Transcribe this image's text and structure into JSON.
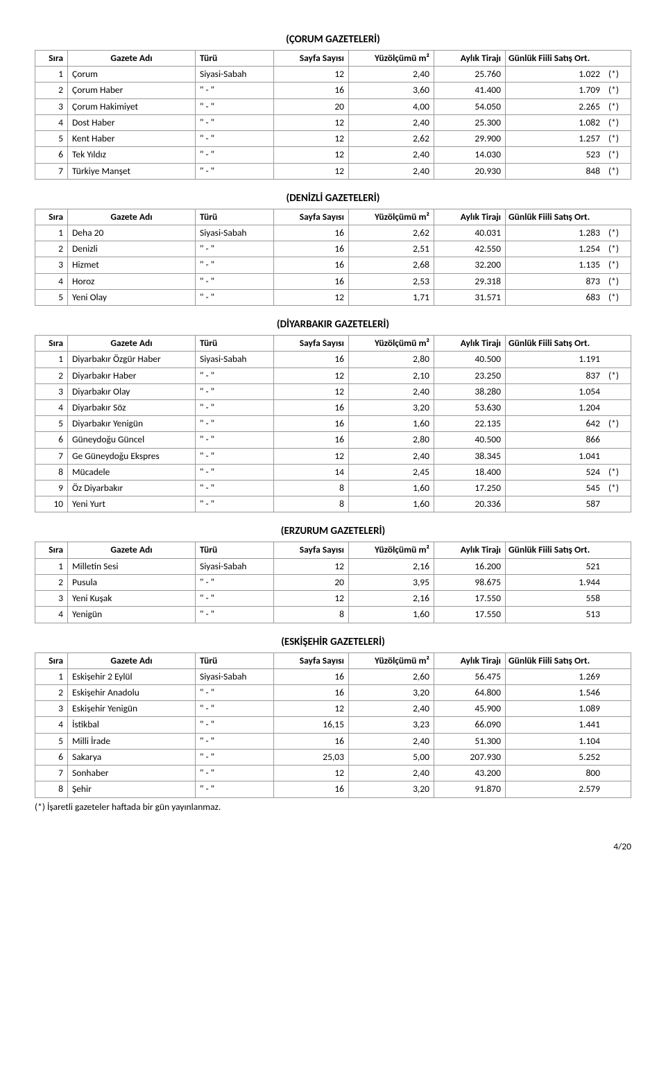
{
  "column_headers": {
    "sira": "Sıra",
    "gazete": "Gazete Adı",
    "turu": "Türü",
    "sayfa": "Sayfa Sayısı",
    "yuz": "Yüzölçümü m²",
    "tiraj": "Aylık Tirajı",
    "ort": "Günlük Fiili Satış Ort."
  },
  "siyasi_sabah": "Siyasi-Sabah",
  "ditto": "\"   -   \"",
  "footnote": "(*) İşaretli gazeteler haftada bir gün yayınlanmaz.",
  "pager": "4/20",
  "sections": [
    {
      "title": "(ÇORUM GAZETELERİ)",
      "rows": [
        {
          "n": "1",
          "name": "Çorum",
          "turu": "first",
          "sayfa": "12",
          "yuz": "2,40",
          "tiraj": "25.760",
          "ort": "1.022",
          "flag": "(*)"
        },
        {
          "n": "2",
          "name": "Çorum Haber",
          "turu": "d",
          "sayfa": "16",
          "yuz": "3,60",
          "tiraj": "41.400",
          "ort": "1.709",
          "flag": "(*)"
        },
        {
          "n": "3",
          "name": "Çorum Hakimiyet",
          "turu": "d",
          "sayfa": "20",
          "yuz": "4,00",
          "tiraj": "54.050",
          "ort": "2.265",
          "flag": "(*)"
        },
        {
          "n": "4",
          "name": "Dost Haber",
          "turu": "d",
          "sayfa": "12",
          "yuz": "2,40",
          "tiraj": "25.300",
          "ort": "1.082",
          "flag": "(*)"
        },
        {
          "n": "5",
          "name": "Kent Haber",
          "turu": "d",
          "sayfa": "12",
          "yuz": "2,62",
          "tiraj": "29.900",
          "ort": "1.257",
          "flag": "(*)"
        },
        {
          "n": "6",
          "name": "Tek Yıldız",
          "turu": "d",
          "sayfa": "12",
          "yuz": "2,40",
          "tiraj": "14.030",
          "ort": "523",
          "flag": "(*)"
        },
        {
          "n": "7",
          "name": "Türkiye Manşet",
          "turu": "d",
          "sayfa": "12",
          "yuz": "2,40",
          "tiraj": "20.930",
          "ort": "848",
          "flag": "(*)"
        }
      ]
    },
    {
      "title": "(DENİZLİ GAZETELERİ)",
      "rows": [
        {
          "n": "1",
          "name": "Deha 20",
          "turu": "first",
          "sayfa": "16",
          "yuz": "2,62",
          "tiraj": "40.031",
          "ort": "1.283",
          "flag": "(*)"
        },
        {
          "n": "2",
          "name": "Denizli",
          "turu": "d",
          "sayfa": "16",
          "yuz": "2,51",
          "tiraj": "42.550",
          "ort": "1.254",
          "flag": "(*)"
        },
        {
          "n": "3",
          "name": "Hizmet",
          "turu": "d",
          "sayfa": "16",
          "yuz": "2,68",
          "tiraj": "32.200",
          "ort": "1.135",
          "flag": "(*)"
        },
        {
          "n": "4",
          "name": "Horoz",
          "turu": "d",
          "sayfa": "16",
          "yuz": "2,53",
          "tiraj": "29.318",
          "ort": "873",
          "flag": "(*)"
        },
        {
          "n": "5",
          "name": "Yeni Olay",
          "turu": "d",
          "sayfa": "12",
          "yuz": "1,71",
          "tiraj": "31.571",
          "ort": "683",
          "flag": "(*)"
        }
      ]
    },
    {
      "title": "(DİYARBAKIR GAZETELERİ)",
      "rows": [
        {
          "n": "1",
          "name": "Diyarbakır Özgür Haber",
          "turu": "first",
          "sayfa": "16",
          "yuz": "2,80",
          "tiraj": "40.500",
          "ort": "1.191",
          "flag": ""
        },
        {
          "n": "2",
          "name": "Diyarbakır Haber",
          "turu": "d",
          "sayfa": "12",
          "yuz": "2,10",
          "tiraj": "23.250",
          "ort": "837",
          "flag": "(*)"
        },
        {
          "n": "3",
          "name": "Diyarbakır Olay",
          "turu": "d",
          "sayfa": "12",
          "yuz": "2,40",
          "tiraj": "38.280",
          "ort": "1.054",
          "flag": ""
        },
        {
          "n": "4",
          "name": "Diyarbakır Söz",
          "turu": "d",
          "sayfa": "16",
          "yuz": "3,20",
          "tiraj": "53.630",
          "ort": "1.204",
          "flag": ""
        },
        {
          "n": "5",
          "name": "Diyarbakır Yenigün",
          "turu": "d",
          "sayfa": "16",
          "yuz": "1,60",
          "tiraj": "22.135",
          "ort": "642",
          "flag": "(*)"
        },
        {
          "n": "6",
          "name": "Güneydoğu Güncel",
          "turu": "d",
          "sayfa": "16",
          "yuz": "2,80",
          "tiraj": "40.500",
          "ort": "866",
          "flag": ""
        },
        {
          "n": "7",
          "name": "Ge Güneydoğu Ekspres",
          "turu": "d",
          "sayfa": "12",
          "yuz": "2,40",
          "tiraj": "38.345",
          "ort": "1.041",
          "flag": ""
        },
        {
          "n": "8",
          "name": "Mücadele",
          "turu": "d",
          "sayfa": "14",
          "yuz": "2,45",
          "tiraj": "18.400",
          "ort": "524",
          "flag": "(*)"
        },
        {
          "n": "9",
          "name": "Öz Diyarbakır",
          "turu": "d",
          "sayfa": "8",
          "yuz": "1,60",
          "tiraj": "17.250",
          "ort": "545",
          "flag": "(*)"
        },
        {
          "n": "10",
          "name": "Yeni Yurt",
          "turu": "d",
          "sayfa": "8",
          "yuz": "1,60",
          "tiraj": "20.336",
          "ort": "587",
          "flag": ""
        }
      ]
    },
    {
      "title": "(ERZURUM GAZETELERİ)",
      "rows": [
        {
          "n": "1",
          "name": "Milletin Sesi",
          "turu": "first",
          "sayfa": "12",
          "yuz": "2,16",
          "tiraj": "16.200",
          "ort": "521",
          "flag": ""
        },
        {
          "n": "2",
          "name": "Pusula",
          "turu": "d",
          "sayfa": "20",
          "yuz": "3,95",
          "tiraj": "98.675",
          "ort": "1.944",
          "flag": ""
        },
        {
          "n": "3",
          "name": "Yeni Kuşak",
          "turu": "d",
          "sayfa": "12",
          "yuz": "2,16",
          "tiraj": "17.550",
          "ort": "558",
          "flag": ""
        },
        {
          "n": "4",
          "name": "Yenigün",
          "turu": "d",
          "sayfa": "8",
          "yuz": "1,60",
          "tiraj": "17.550",
          "ort": "513",
          "flag": ""
        }
      ]
    },
    {
      "title": "(ESKİŞEHİR GAZETELERİ)",
      "rows": [
        {
          "n": "1",
          "name": "Eskişehir 2 Eylül",
          "turu": "first",
          "sayfa": "16",
          "yuz": "2,60",
          "tiraj": "56.475",
          "ort": "1.269",
          "flag": ""
        },
        {
          "n": "2",
          "name": "Eskişehir Anadolu",
          "turu": "d",
          "sayfa": "16",
          "yuz": "3,20",
          "tiraj": "64.800",
          "ort": "1.546",
          "flag": ""
        },
        {
          "n": "3",
          "name": "Eskişehir Yenigün",
          "turu": "d",
          "sayfa": "12",
          "yuz": "2,40",
          "tiraj": "45.900",
          "ort": "1.089",
          "flag": ""
        },
        {
          "n": "4",
          "name": "İstikbal",
          "turu": "d",
          "sayfa": "16,15",
          "yuz": "3,23",
          "tiraj": "66.090",
          "ort": "1.441",
          "flag": ""
        },
        {
          "n": "5",
          "name": "Milli İrade",
          "turu": "d",
          "sayfa": "16",
          "yuz": "2,40",
          "tiraj": "51.300",
          "ort": "1.104",
          "flag": ""
        },
        {
          "n": "6",
          "name": "Sakarya",
          "turu": "d",
          "sayfa": "25,03",
          "yuz": "5,00",
          "tiraj": "207.930",
          "ort": "5.252",
          "flag": ""
        },
        {
          "n": "7",
          "name": "Sonhaber",
          "turu": "d",
          "sayfa": "12",
          "yuz": "2,40",
          "tiraj": "43.200",
          "ort": "800",
          "flag": ""
        },
        {
          "n": "8",
          "name": "Şehir",
          "turu": "d",
          "sayfa": "16",
          "yuz": "3,20",
          "tiraj": "91.870",
          "ort": "2.579",
          "flag": ""
        }
      ]
    }
  ]
}
